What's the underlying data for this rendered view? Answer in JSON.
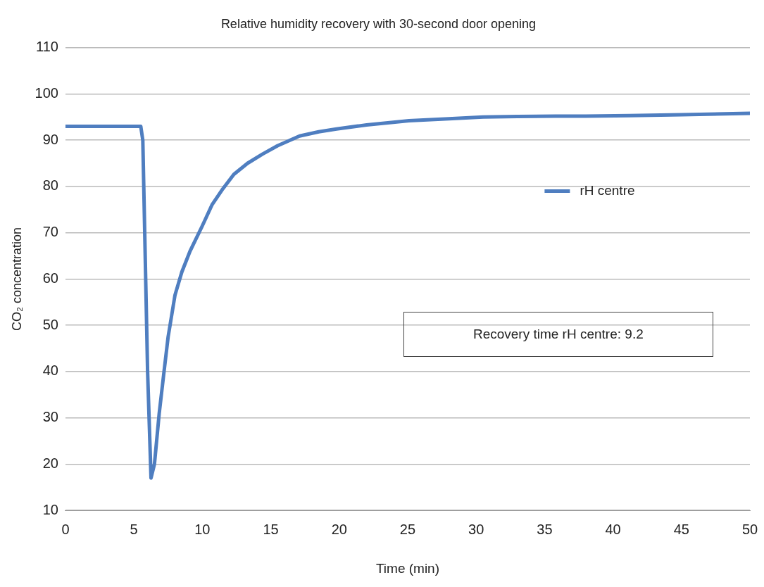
{
  "chart_data": {
    "type": "line",
    "title": "Relative humidity recovery with 30-second door opening",
    "xlabel": "Time (min)",
    "ylabel": "CO₂ concentration",
    "series": [
      {
        "name": "rH centre",
        "color": "#4f7ec0",
        "x": [
          0,
          2,
          4,
          5.5,
          5.65,
          6.0,
          6.25,
          6.5,
          6.85,
          7.2,
          7.5,
          8.0,
          8.5,
          9.1,
          10.0,
          10.7,
          11.5,
          12.3,
          13.3,
          14.4,
          15.5,
          17.1,
          18.5,
          19.8,
          22,
          25.1,
          28,
          30.5,
          33,
          35.8,
          38,
          41.2,
          45,
          50
        ],
        "values": [
          93,
          93,
          93,
          93,
          90,
          40,
          17,
          20,
          31,
          40,
          47.5,
          56.5,
          61.5,
          66,
          71.5,
          76,
          79.5,
          82.6,
          85,
          87,
          88.8,
          90.9,
          91.8,
          92.4,
          93.3,
          94.2,
          94.6,
          95,
          95.1,
          95.2,
          95.2,
          95.3,
          95.5,
          95.8
        ]
      }
    ],
    "xlim": [
      0,
      50
    ],
    "xticks": [
      0,
      5,
      10,
      15,
      20,
      25,
      30,
      35,
      40,
      45,
      50
    ],
    "ylim": [
      10,
      110
    ],
    "yticks": [
      10,
      20,
      30,
      40,
      50,
      60,
      70,
      80,
      90,
      100,
      110
    ],
    "grid": "y",
    "legend": "right",
    "marker": "none",
    "line_style": "solid",
    "annotations": [
      "Recovery time rH centre: 9.2"
    ]
  }
}
